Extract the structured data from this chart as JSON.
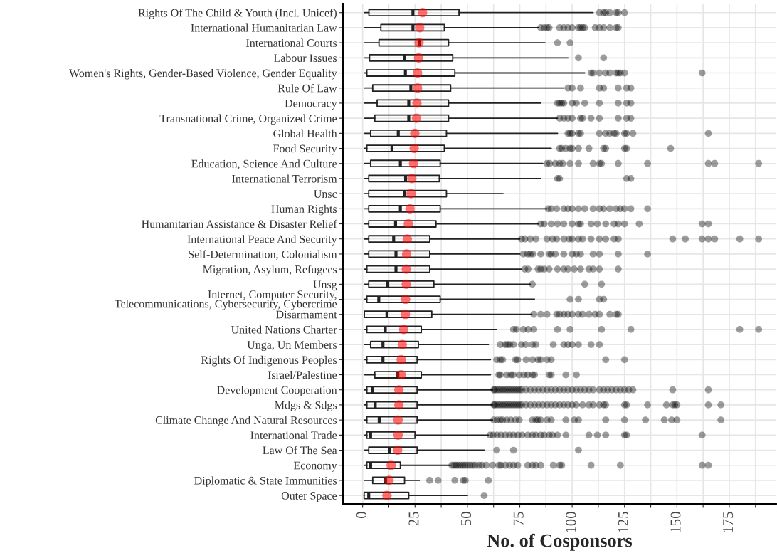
{
  "chart_data": {
    "type": "box",
    "orientation": "horizontal",
    "xlabel": "No. of Cosponsors",
    "grid": true,
    "xlim": [
      -9.4,
      197.4
    ],
    "xticks": [
      0,
      {
        "value": 12.5,
        "label": null
      },
      25,
      {
        "value": 37.5,
        "label": null
      },
      50,
      {
        "value": 62.5,
        "label": null
      },
      75,
      {
        "value": 87.5,
        "label": null
      },
      100,
      {
        "value": 112.5,
        "label": null
      },
      125,
      {
        "value": 137.5,
        "label": null
      },
      150,
      {
        "value": 162.5,
        "label": null
      },
      175,
      {
        "value": 187.5,
        "label": null
      }
    ],
    "categories": [
      "Rights Of The Child & Youth (Incl. Unicef)",
      "International Humanitarian Law",
      "International Courts",
      "Labour Issues",
      "Women's Rights, Gender-Based Violence, Gender Equality",
      "Rule Of Law",
      "Democracy",
      "Transnational Crime, Organized Crime",
      "Global Health",
      "Food Security",
      "Education, Science And Culture",
      "International Terrorism",
      "Unsc",
      "Human Rights",
      "Humanitarian Assistance & Disaster Relief",
      "International Peace And Security",
      "Self-Determination, Colonialism",
      "Migration, Asylum, Refugees",
      "Unsg",
      "Internet, Computer Security, Telecommunications, Cybersecurity, Cybercrime",
      "Disarmament",
      "United Nations Charter",
      "Unga, Un Members",
      "Rights Of Indigenous Peoples",
      "Israel/Palestine",
      "Development Cooperation",
      "Mdgs & Sdgs",
      "Climate Change And Natural Resources",
      "International Trade",
      "Law Of The Sea",
      "Economy",
      "Diplomatic & State Immunities",
      "Outer Space"
    ],
    "boxes": [
      {
        "low": 1,
        "q1": 3,
        "median": 24,
        "q3": 46,
        "high": 110,
        "mean": 28.6,
        "outliers": [
          113,
          115,
          116,
          118,
          121,
          122,
          125
        ]
      },
      {
        "low": 1,
        "q1": 8.7,
        "median": 24,
        "q3": 39,
        "high": 84,
        "mean": 27.2,
        "outliers": [
          85,
          86.6,
          88,
          89,
          94,
          96,
          98,
          100,
          103,
          104,
          105,
          106,
          111,
          113,
          115,
          118,
          121,
          122
        ]
      },
      {
        "low": 1,
        "q1": 7.8,
        "median": 27,
        "q3": 41,
        "high": 87,
        "mean": 26.9,
        "outliers": [
          93,
          99
        ]
      },
      {
        "low": 1,
        "q1": 3.3,
        "median": 20,
        "q3": 43,
        "high": 98,
        "mean": 26.7,
        "outliers": [
          103,
          115
        ]
      },
      {
        "low": 1,
        "q1": 2,
        "median": 20.4,
        "q3": 44,
        "high": 106,
        "mean": 26.2,
        "outliers": [
          109,
          110,
          113,
          116,
          118,
          121,
          122,
          123,
          125,
          162
        ]
      },
      {
        "low": 1,
        "q1": 4.8,
        "median": 23,
        "q3": 42,
        "high": 96,
        "mean": 26.2,
        "outliers": [
          98,
          100,
          104,
          113,
          115,
          122,
          126,
          128
        ]
      },
      {
        "low": 1,
        "q1": 6.9,
        "median": 22,
        "q3": 41,
        "high": 85,
        "mean": 25.9,
        "outliers": [
          93,
          94,
          95,
          96,
          100,
          102,
          106,
          113,
          122,
          126,
          128
        ]
      },
      {
        "low": 1,
        "q1": 5.8,
        "median": 22,
        "q3": 41,
        "high": 93,
        "mean": 25.7,
        "outliers": [
          94,
          96,
          98,
          100,
          104,
          105,
          109,
          113,
          122,
          126,
          128
        ]
      },
      {
        "low": 1,
        "q1": 3.8,
        "median": 17,
        "q3": 40,
        "high": 93,
        "mean": 24.9,
        "outliers": [
          98,
          99,
          100,
          103,
          104,
          113,
          116,
          118,
          120,
          121,
          125,
          126,
          129,
          165
        ]
      },
      {
        "low": 1,
        "q1": 2,
        "median": 14,
        "q3": 39,
        "high": 90,
        "mean": 24.6,
        "outliers": [
          94,
          95,
          97,
          99,
          100,
          103,
          108,
          115,
          116,
          125,
          126,
          147
        ]
      },
      {
        "low": 1,
        "q1": 3.8,
        "median": 18,
        "q3": 37,
        "high": 86,
        "mean": 24.3,
        "outliers": [
          88,
          89.3,
          92,
          94,
          95.5,
          99,
          103,
          110,
          113,
          114,
          122,
          136,
          165,
          168,
          189
        ]
      },
      {
        "low": 1,
        "q1": 2.9,
        "median": 20.5,
        "q3": 36.6,
        "high": 85,
        "mean": 23.5,
        "outliers": [
          93,
          94,
          126,
          128
        ]
      },
      {
        "low": 1,
        "q1": 2.9,
        "median": 20,
        "q3": 40,
        "high": 67,
        "mean": 23.1
      },
      {
        "low": 1,
        "q1": 2.9,
        "median": 18,
        "q3": 37,
        "high": 88,
        "mean": 22.6,
        "outliers": [
          88.6,
          90,
          92.6,
          96,
          98,
          100,
          103,
          106,
          110,
          113,
          115,
          118,
          121,
          123,
          125,
          128,
          136
        ]
      },
      {
        "low": 1,
        "q1": 2.9,
        "median": 15.7,
        "q3": 35,
        "high": 84,
        "mean": 21.8,
        "outliers": [
          85,
          86.6,
          90,
          93,
          96,
          100,
          103,
          104,
          109,
          112,
          116,
          120,
          122,
          125,
          132,
          162,
          165
        ]
      },
      {
        "low": 1,
        "q1": 2.9,
        "median": 14.8,
        "q3": 32,
        "high": 75,
        "mean": 21.3,
        "outliers": [
          75.8,
          77.4,
          80,
          82.7,
          88,
          90.6,
          92.6,
          96,
          98.5,
          100,
          103,
          105,
          109,
          113,
          116,
          120,
          122,
          148,
          154,
          162,
          165,
          168,
          180,
          189
        ]
      },
      {
        "low": 1,
        "q1": 2.9,
        "median": 15.9,
        "q3": 32,
        "high": 75,
        "mean": 21,
        "outliers": [
          76.7,
          78.7,
          80,
          81.3,
          85,
          89,
          90,
          92,
          96,
          100,
          102,
          104,
          110,
          113,
          122,
          136
        ]
      },
      {
        "low": 1,
        "q1": 2,
        "median": 15.9,
        "q3": 32,
        "high": 75.8,
        "mean": 20.8,
        "outliers": [
          77.4,
          79,
          83.7,
          85,
          86.6,
          89,
          93,
          96,
          98,
          101,
          104,
          108,
          110,
          113,
          122
        ]
      },
      {
        "low": 1,
        "q1": 2.9,
        "median": 12,
        "q3": 34,
        "high": 80,
        "mean": 20.8,
        "outliers": [
          81,
          106,
          114
        ]
      },
      {
        "low": 1,
        "q1": 2,
        "median": 7.7,
        "q3": 37,
        "high": 82,
        "mean": 20.5,
        "outliers": [
          99,
          103,
          113,
          115
        ]
      },
      {
        "low": 0.8,
        "q1": 0.8,
        "median": 11.6,
        "q3": 33,
        "high": 80.7,
        "mean": 20.4,
        "outliers": [
          81.7,
          85,
          88,
          92.6,
          94,
          96,
          98,
          100,
          103,
          105,
          108,
          111,
          113,
          118,
          121,
          122
        ]
      },
      {
        "low": 1,
        "q1": 2,
        "median": 10.8,
        "q3": 28,
        "high": 64,
        "mean": 19.6,
        "outliers": [
          72,
          73.4,
          76.7,
          79,
          81.7,
          93,
          99,
          114,
          128,
          180,
          189
        ]
      },
      {
        "low": 1,
        "q1": 3.8,
        "median": 9.7,
        "q3": 26.6,
        "high": 60,
        "mean": 18.9,
        "outliers": [
          65.7,
          68,
          69.2,
          70.2,
          72,
          75.8,
          77.8,
          81,
          82.7,
          91,
          96,
          98,
          100,
          103,
          109,
          113
        ]
      },
      {
        "low": 1,
        "q1": 2,
        "median": 9.7,
        "q3": 26,
        "high": 61,
        "mean": 18.4,
        "outliers": [
          64,
          65.7,
          66.8,
          73,
          74,
          78,
          81,
          83.7,
          85,
          88,
          90,
          116,
          125
        ]
      },
      {
        "low": 1,
        "q1": 5.8,
        "median": 16.8,
        "q3": 28,
        "high": 61,
        "mean": 18.4,
        "outliers": [
          65,
          65.7,
          68.8,
          70.8,
          71.8,
          74.7,
          77,
          78.8,
          81,
          82,
          89,
          90,
          97,
          102
        ]
      },
      {
        "low": 1,
        "q1": 2,
        "median": 4.6,
        "q3": 26,
        "high": 62,
        "mean": 17.3,
        "outliers": [
          62.6,
          63,
          64,
          65,
          66,
          67,
          68,
          69,
          70,
          71,
          72,
          73,
          74,
          75,
          76,
          78,
          80,
          82,
          84,
          86,
          88,
          90,
          92,
          94,
          96,
          98,
          100,
          102,
          104,
          106,
          108,
          110,
          113,
          115,
          117,
          119,
          121,
          123,
          125,
          127,
          129,
          148,
          165
        ]
      },
      {
        "low": 1,
        "q1": 2,
        "median": 6,
        "q3": 26,
        "high": 62,
        "mean": 17.3,
        "outliers": [
          62.6,
          63,
          64,
          65,
          66,
          67,
          68,
          69,
          70,
          71,
          72,
          73,
          74,
          75,
          76,
          78,
          80,
          82,
          84,
          86,
          88,
          90,
          92,
          94,
          96,
          98,
          100,
          102,
          105,
          108,
          110,
          113,
          115,
          116,
          125,
          126,
          136,
          145,
          148,
          149,
          150,
          165,
          171
        ]
      },
      {
        "low": 1,
        "q1": 2,
        "median": 7.9,
        "q3": 26,
        "high": 62,
        "mean": 16.9,
        "outliers": [
          62.6,
          64.2,
          65.7,
          66.8,
          68.8,
          70.8,
          73,
          74.7,
          81,
          82.7,
          83.7,
          85,
          88,
          90,
          97,
          101,
          103,
          116,
          125,
          135,
          144,
          147.5,
          150,
          171
        ]
      },
      {
        "low": 1,
        "q1": 2,
        "median": 3.8,
        "q3": 25,
        "high": 60,
        "mean": 16.9,
        "outliers": [
          60.8,
          62.2,
          64.2,
          66.1,
          68.1,
          70.1,
          72,
          74.1,
          76.1,
          78.8,
          81,
          82.7,
          85,
          86.6,
          89,
          90.6,
          93,
          97,
          108,
          112,
          116,
          125,
          126,
          162
        ]
      },
      {
        "low": 1,
        "q1": 2.9,
        "median": 12.7,
        "q3": 26,
        "high": 58,
        "mean": 16.7,
        "outliers": [
          64,
          72,
          103
        ]
      },
      {
        "low": 1,
        "q1": 2,
        "median": 3.8,
        "q3": 18,
        "high": 42,
        "mean": 13.6,
        "outliers": [
          42.6,
          43.7,
          44.6,
          45.6,
          46.7,
          47.8,
          48.8,
          50,
          51.2,
          52.5,
          53.8,
          55.6,
          57,
          59,
          62,
          65,
          66.1,
          68.1,
          70.1,
          72,
          74,
          78.8,
          81,
          82.7,
          85,
          91,
          94,
          95,
          109,
          123,
          162,
          165
        ]
      },
      {
        "low": 1,
        "q1": 4.8,
        "median": 11,
        "q3": 20,
        "high": 27,
        "mean": 12.6,
        "outliers": [
          32,
          36,
          44,
          48,
          49,
          60
        ]
      },
      {
        "low": 0.7,
        "q1": 0.7,
        "median": 2.9,
        "q3": 22,
        "high": 50,
        "mean": 11.6,
        "outliers": [
          58
        ]
      }
    ]
  }
}
